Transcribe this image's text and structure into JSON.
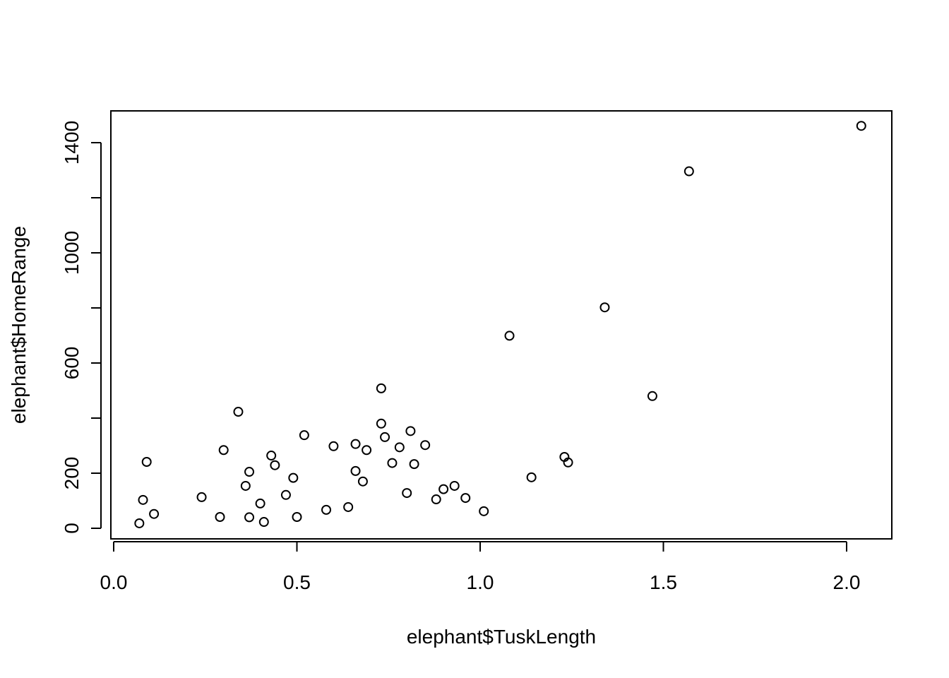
{
  "chart_data": {
    "type": "scatter",
    "title": "",
    "xlabel": "elephant$TuskLength",
    "ylabel": "elephant$HomeRange",
    "xlim": [
      0.0,
      2.12
    ],
    "ylim": [
      -40,
      1520
    ],
    "x_ticks": [
      0.0,
      0.5,
      1.0,
      1.5,
      2.0
    ],
    "x_tick_labels": [
      "0.0",
      "0.5",
      "1.0",
      "1.5",
      "2.0"
    ],
    "y_ticks": [
      0,
      200,
      400,
      600,
      800,
      1000,
      1200,
      1400
    ],
    "y_tick_labels": [
      "0",
      "200",
      "",
      "600",
      "",
      "1000",
      "",
      "1400"
    ],
    "grid": false,
    "marker": "open-circle",
    "color": "#000000",
    "points": [
      [
        0.07,
        18
      ],
      [
        0.08,
        103
      ],
      [
        0.09,
        241
      ],
      [
        0.11,
        52
      ],
      [
        0.24,
        113
      ],
      [
        0.29,
        41
      ],
      [
        0.3,
        284
      ],
      [
        0.34,
        423
      ],
      [
        0.36,
        154
      ],
      [
        0.37,
        40
      ],
      [
        0.37,
        205
      ],
      [
        0.4,
        90
      ],
      [
        0.41,
        23
      ],
      [
        0.43,
        264
      ],
      [
        0.44,
        229
      ],
      [
        0.47,
        121
      ],
      [
        0.49,
        183
      ],
      [
        0.5,
        41
      ],
      [
        0.52,
        338
      ],
      [
        0.58,
        67
      ],
      [
        0.6,
        298
      ],
      [
        0.64,
        77
      ],
      [
        0.66,
        306
      ],
      [
        0.66,
        208
      ],
      [
        0.68,
        170
      ],
      [
        0.69,
        284
      ],
      [
        0.73,
        508
      ],
      [
        0.73,
        380
      ],
      [
        0.74,
        331
      ],
      [
        0.76,
        237
      ],
      [
        0.78,
        294
      ],
      [
        0.8,
        128
      ],
      [
        0.81,
        353
      ],
      [
        0.82,
        233
      ],
      [
        0.85,
        302
      ],
      [
        0.88,
        105
      ],
      [
        0.9,
        142
      ],
      [
        0.93,
        154
      ],
      [
        0.96,
        110
      ],
      [
        1.01,
        62
      ],
      [
        1.08,
        699
      ],
      [
        1.14,
        185
      ],
      [
        1.23,
        259
      ],
      [
        1.24,
        239
      ],
      [
        1.34,
        802
      ],
      [
        1.47,
        480
      ],
      [
        1.57,
        1296
      ],
      [
        2.04,
        1461
      ]
    ]
  }
}
